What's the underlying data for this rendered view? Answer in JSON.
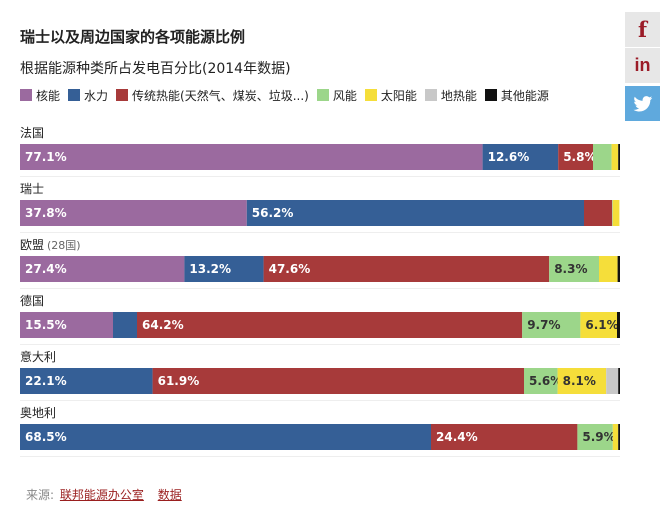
{
  "title": "瑞士以及周边国家的各项能源比例",
  "subtitle": "根据能源种类所占发电百分比(2014年数据)",
  "share": {
    "facebook": "f",
    "linkedin": "in"
  },
  "source": {
    "prefix": "来源:",
    "link1": "联邦能源办公室",
    "link2": "数据"
  },
  "legend": [
    {
      "label": "核能",
      "color": "#9b6a9f"
    },
    {
      "label": "水力",
      "color": "#355f96"
    },
    {
      "label": "传统热能(天然气、煤炭、垃圾...)",
      "color": "#a73a3a"
    },
    {
      "label": "风能",
      "color": "#9cd68a"
    },
    {
      "label": "太阳能",
      "color": "#f5de3a"
    },
    {
      "label": "地热能",
      "color": "#c8c8c8"
    },
    {
      "label": "其他能源",
      "color": "#111111"
    }
  ],
  "chart_data": {
    "type": "bar",
    "orientation": "horizontal",
    "stacked": true,
    "title": "瑞士以及周边国家的各项能源比例",
    "subtitle": "根据能源种类所占发电百分比(2014年数据)",
    "unit": "%",
    "xlim": [
      0,
      100
    ],
    "categories": [
      "法国",
      "瑞士",
      "欧盟",
      "德国",
      "意大利",
      "奥地利"
    ],
    "category_suffixes": [
      "",
      "",
      "(28国)",
      "",
      "",
      ""
    ],
    "series": [
      {
        "name": "核能",
        "color": "#9b6a9f",
        "values": [
          77.1,
          37.8,
          27.4,
          15.5,
          0,
          0
        ]
      },
      {
        "name": "水力",
        "color": "#355f96",
        "values": [
          12.6,
          56.2,
          13.2,
          4.0,
          22.1,
          68.5
        ]
      },
      {
        "name": "传统热能(天然气、煤炭、垃圾...)",
        "color": "#a73a3a",
        "values": [
          5.8,
          4.7,
          47.6,
          64.2,
          61.9,
          24.4
        ]
      },
      {
        "name": "风能",
        "color": "#9cd68a",
        "values": [
          3.1,
          0.1,
          8.3,
          9.7,
          5.6,
          5.9
        ]
      },
      {
        "name": "太阳能",
        "color": "#f5de3a",
        "values": [
          1.1,
          1.1,
          3.1,
          6.1,
          8.1,
          0.9
        ]
      },
      {
        "name": "地热能",
        "color": "#c8c8c8",
        "values": [
          0,
          0,
          0,
          0,
          2.0,
          0
        ]
      },
      {
        "name": "其他能源",
        "color": "#111111",
        "values": [
          0.3,
          0,
          0.4,
          0.5,
          0.3,
          0.3
        ]
      }
    ],
    "data_labels": [
      [
        "77.1%",
        "12.6%",
        "5.8%",
        "",
        "",
        "",
        ""
      ],
      [
        "37.8%",
        "56.2%",
        "",
        "",
        "",
        "",
        ""
      ],
      [
        "27.4%",
        "13.2%",
        "47.6%",
        "8.3%",
        "",
        "",
        ""
      ],
      [
        "15.5%",
        "",
        "64.2%",
        "9.7%",
        "6.1%",
        "",
        ""
      ],
      [
        "",
        "22.1%",
        "61.9%",
        "5.6%",
        "8.1%",
        "",
        ""
      ],
      [
        "",
        "68.5%",
        "24.4%",
        "5.9%",
        "",
        "",
        ""
      ]
    ]
  }
}
